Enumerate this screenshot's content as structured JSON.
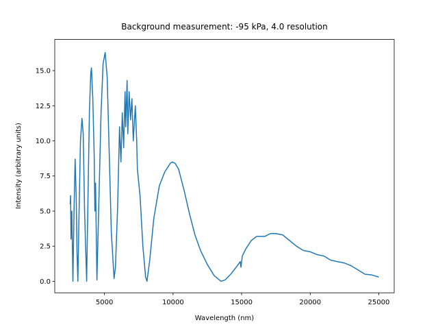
{
  "chart_data": {
    "type": "line",
    "title": "Background measurement: -95 kPa, 4.0 resolution",
    "x_label": "Wavelength (nm)",
    "y_label": "Intensity (arbitrary units)",
    "color": "#1f77b4",
    "xlim": [
      1375,
      26125
    ],
    "ylim": [
      -0.82,
      17.22
    ],
    "xticks": [
      5000,
      10000,
      15000,
      20000,
      25000
    ],
    "yticks": [
      {
        "value": 0,
        "label": "0.0"
      },
      {
        "value": 2.5,
        "label": "2.5"
      },
      {
        "value": 5,
        "label": "5.0"
      },
      {
        "value": 7.5,
        "label": "7.5"
      },
      {
        "value": 10,
        "label": "10.0"
      },
      {
        "value": 12.5,
        "label": "12.5"
      },
      {
        "value": 15,
        "label": "15.0"
      }
    ],
    "x": [
      2500,
      2530,
      2560,
      2620,
      2700,
      2780,
      2860,
      2940,
      3000,
      3060,
      3150,
      3250,
      3360,
      3450,
      3550,
      3700,
      3800,
      3900,
      4000,
      4050,
      4150,
      4250,
      4300,
      4350,
      4450,
      4600,
      4750,
      4900,
      5050,
      5200,
      5350,
      5500,
      5700,
      5800,
      5950,
      6100,
      6200,
      6300,
      6400,
      6500,
      6550,
      6650,
      6700,
      6800,
      6900,
      7000,
      7100,
      7250,
      7350,
      7400,
      7600,
      7800,
      8000,
      8100,
      8300,
      8600,
      9000,
      9400,
      9800,
      9950,
      10150,
      10400,
      10800,
      11200,
      11600,
      12000,
      12500,
      13000,
      13500,
      13800,
      14200,
      14600,
      14900,
      14950,
      15050,
      15300,
      15700,
      16100,
      16700,
      17100,
      17500,
      18000,
      18500,
      19000,
      19500,
      20000,
      20500,
      21000,
      21500,
      22000,
      22500,
      23000,
      23500,
      24000,
      24500,
      25000
    ],
    "values": [
      5.5,
      6.1,
      3.0,
      5.0,
      0.0,
      5.0,
      8.7,
      6.0,
      2.0,
      0.0,
      5.0,
      10.0,
      11.6,
      10.5,
      5.0,
      0.0,
      6.0,
      12.0,
      14.8,
      15.2,
      13.0,
      9.0,
      5.0,
      7.0,
      0.1,
      6.0,
      12.0,
      15.5,
      16.3,
      14.5,
      9.0,
      3.5,
      0.2,
      1.0,
      5.0,
      11.0,
      8.5,
      12.0,
      9.5,
      13.5,
      11.0,
      14.3,
      10.5,
      13.5,
      11.5,
      13.0,
      10.0,
      12.5,
      10.0,
      8.0,
      6.0,
      2.5,
      0.3,
      0.0,
      1.5,
      4.5,
      6.8,
      7.8,
      8.4,
      8.5,
      8.4,
      8.0,
      6.5,
      4.8,
      3.3,
      2.2,
      1.2,
      0.4,
      0.0,
      0.1,
      0.5,
      1.0,
      1.4,
      1.0,
      1.8,
      2.3,
      2.9,
      3.2,
      3.2,
      3.4,
      3.4,
      3.3,
      2.9,
      2.5,
      2.2,
      2.1,
      1.9,
      1.8,
      1.5,
      1.4,
      1.3,
      1.1,
      0.8,
      0.5,
      0.45,
      0.3
    ]
  }
}
